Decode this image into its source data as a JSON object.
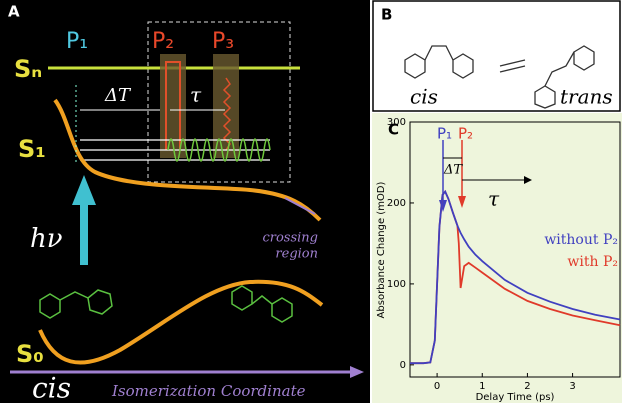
{
  "panel_a": {
    "label": "A",
    "sn": "Sₙ",
    "s1": "S₁",
    "s0": "S₀",
    "pulses": [
      "P₁",
      "P₂",
      "P₃"
    ],
    "delay": "ΔT",
    "tau": "τ",
    "excitation": "hν",
    "crossing": [
      "crossing",
      "region"
    ],
    "isomer": "cis",
    "coordinate": "Isomerization Coordinate"
  },
  "panel_b": {
    "label": "B",
    "left": "cis",
    "right": "trans"
  },
  "panel_c": {
    "label": "C",
    "pulses": [
      "P₁",
      "P₂"
    ],
    "delay": "ΔT",
    "tau": "τ"
  },
  "chart_data": {
    "type": "line",
    "xlabel": "Delay Time (ps)",
    "ylabel": "Absorbance Change (mOD)",
    "x": [
      -0.6,
      -0.3,
      -0.15,
      -0.05,
      0.05,
      0.12,
      0.18,
      0.25,
      0.35,
      0.45,
      0.48,
      0.52,
      0.6,
      0.7,
      0.85,
      1,
      1.5,
      2,
      2.5,
      3,
      3.5,
      4.05
    ],
    "series": [
      {
        "name": "without P₂",
        "color": "#4040c0",
        "values": [
          2,
          2,
          3,
          30,
          170,
          210,
          214,
          205,
          188,
          172,
          168,
          163,
          155,
          146,
          136,
          128,
          105,
          89,
          78,
          69,
          62,
          56
        ]
      },
      {
        "name": "with P₂",
        "color": "#e03a2a",
        "values": [
          2,
          2,
          3,
          30,
          170,
          210,
          214,
          205,
          188,
          172,
          150,
          95,
          122,
          126,
          120,
          114,
          94,
          79,
          69,
          61,
          55,
          49
        ]
      }
    ],
    "xlim": [
      -0.6,
      4.05
    ],
    "ylim": [
      -15,
      300
    ],
    "xticks": [
      0,
      1,
      2,
      3
    ],
    "yticks": [
      0,
      100,
      200,
      300
    ]
  }
}
